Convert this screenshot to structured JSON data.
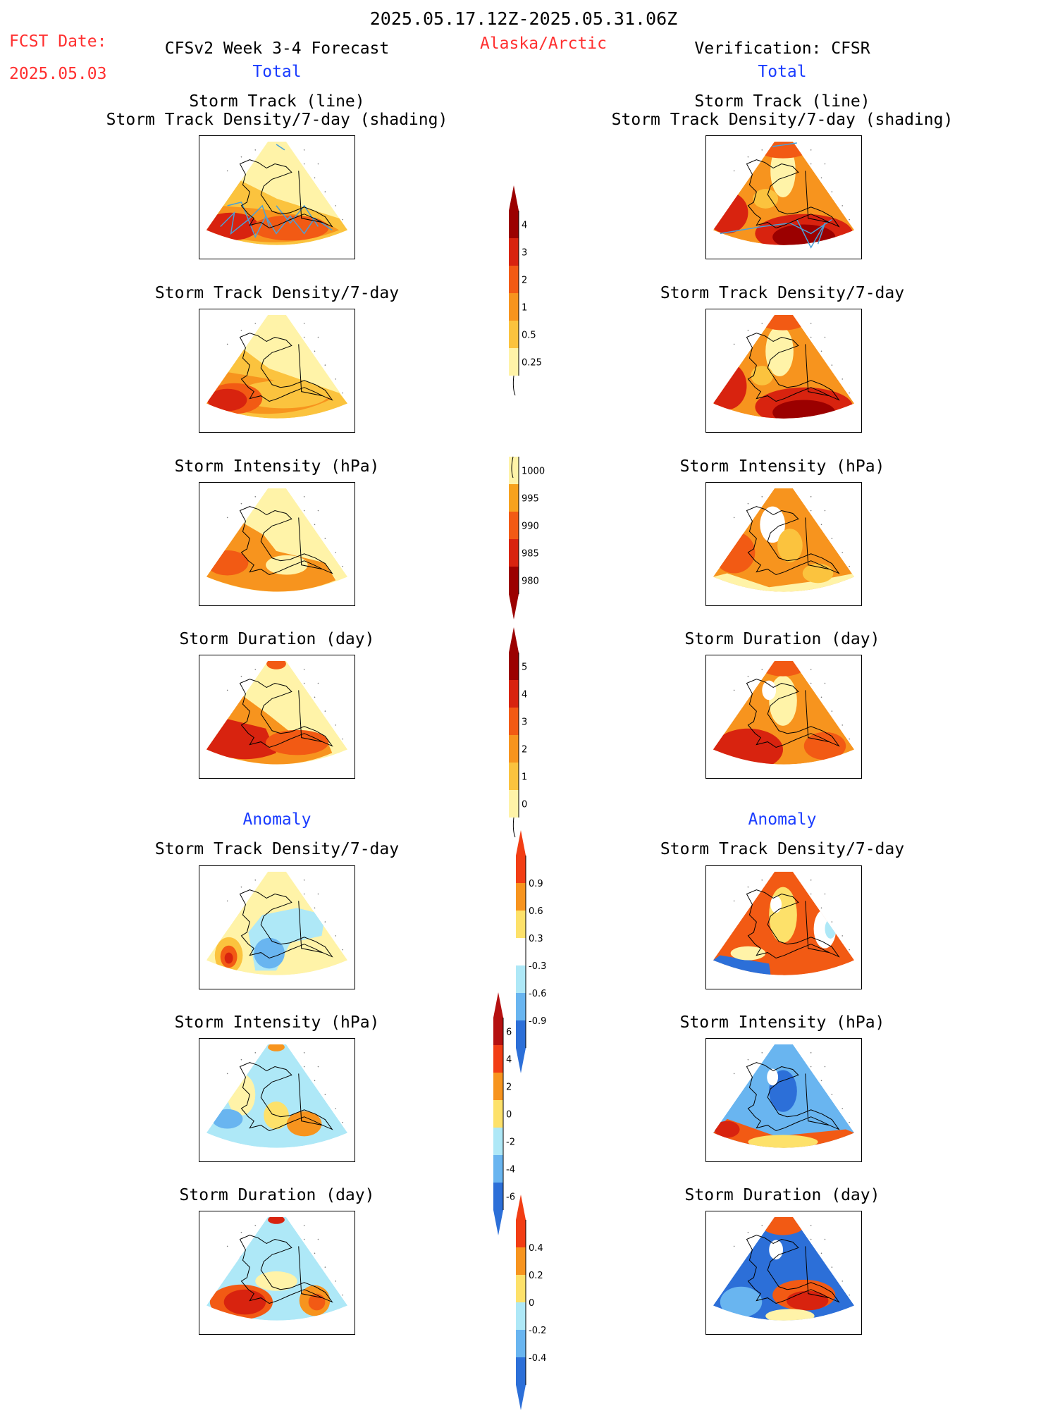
{
  "header": {
    "date_range": "2025.05.17.12Z-2025.05.31.06Z",
    "fcst_label": "FCST Date:",
    "fcst_date": "2025.05.03",
    "left_title": "CFSv2 Week 3-4 Forecast",
    "region": "Alaska/Arctic",
    "right_title": "Verification: CFSR",
    "left_sub": "Total",
    "right_sub": "Total"
  },
  "sections": {
    "total": "Total",
    "anomaly_left": "Anomaly",
    "anomaly_right": "Anomaly"
  },
  "titles": {
    "track_line": "Storm Track (line)",
    "track_shading": "Storm Track Density/7-day (shading)",
    "density": "Storm Track Density/7-day",
    "intensity": "Storm Intensity (hPa)",
    "duration": "Storm Duration (day)"
  },
  "colorbars": {
    "density": {
      "labels": [
        "4",
        "3",
        "2",
        "1",
        "0.5",
        "0.25"
      ],
      "colors": [
        "#9b0000",
        "#d8230f",
        "#f25a14",
        "#f7941e",
        "#fbc33e",
        "#fff3a8"
      ]
    },
    "intensity": {
      "labels": [
        "1000",
        "995",
        "990",
        "985",
        "980"
      ],
      "colors": [
        "#fff3a8",
        "#f7a21e",
        "#f25a14",
        "#d8230f",
        "#9b0000"
      ]
    },
    "duration": {
      "labels": [
        "5",
        "4",
        "3",
        "2",
        "1",
        "0"
      ],
      "colors": [
        "#9b0000",
        "#d8230f",
        "#f25a14",
        "#f7941e",
        "#fbc33e",
        "#fff3a8"
      ]
    },
    "anom_density": {
      "labels": [
        "0.9",
        "0.6",
        "0.3",
        "-0.3",
        "-0.6",
        "-0.9"
      ],
      "colors": [
        "#f23d14",
        "#f7941e",
        "#fde16a",
        "#ffffff",
        "#aee8f7",
        "#69b5f0",
        "#2c6fd8"
      ]
    },
    "anom_intensity": {
      "labels": [
        "6",
        "4",
        "2",
        "0",
        "-2",
        "-4",
        "-6"
      ],
      "colors": [
        "#b51010",
        "#f23d14",
        "#f7941e",
        "#fde16a",
        "#aee8f7",
        "#69b5f0",
        "#2c6fd8"
      ]
    },
    "anom_duration": {
      "labels": [
        "0.4",
        "0.2",
        "0",
        "-0.2",
        "-0.4"
      ],
      "colors": [
        "#f23d14",
        "#f7941e",
        "#fde16a",
        "#aee8f7",
        "#69b5f0",
        "#2c6fd8"
      ]
    }
  },
  "map_colors": {
    "darkred": "#9b0000",
    "red": "#d8230f",
    "orangered": "#f25a14",
    "orange": "#f7941e",
    "ltorange": "#fbc33e",
    "yellow": "#fff3a8",
    "blue": "#2c6fd8",
    "ltblue": "#69b5f0",
    "paleblue": "#aee8f7",
    "paleyellow": "#fde16a",
    "track": "#4aa0d8"
  }
}
